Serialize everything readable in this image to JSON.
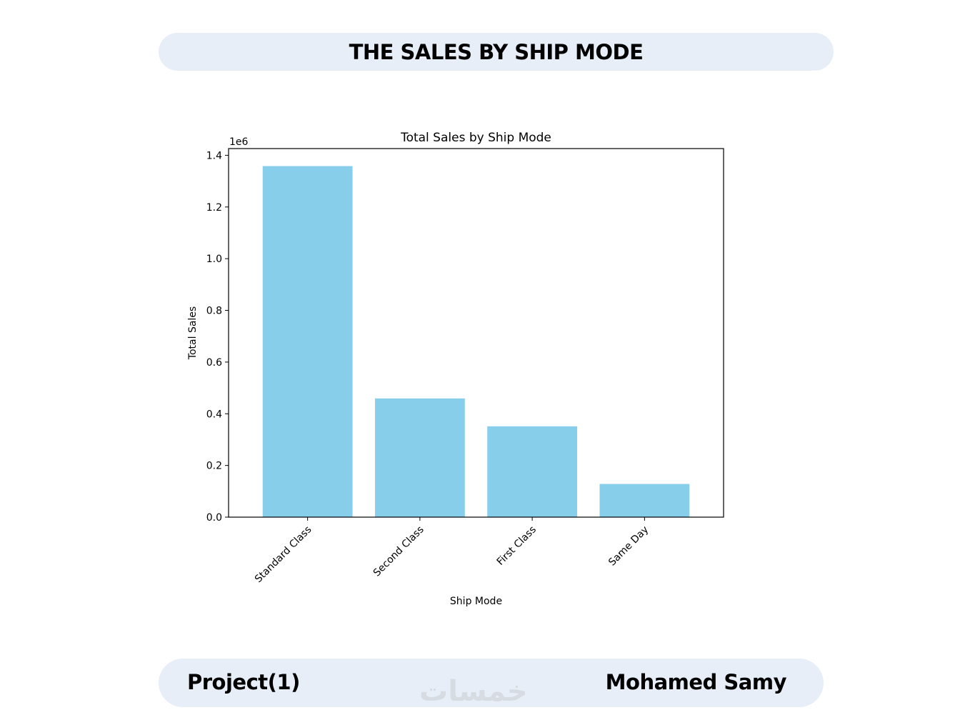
{
  "header": {
    "title": "THE SALES BY SHIP MODE"
  },
  "footer": {
    "left_label": "Project(1)",
    "right_label": "Mohamed Samy",
    "watermark": "خمسات"
  },
  "colors": {
    "bar": "#87ceeb",
    "pill_background": "#e8eef8"
  },
  "chart_data": {
    "type": "bar",
    "title": "Total Sales by Ship Mode",
    "xlabel": "Ship Mode",
    "ylabel": "Total Sales",
    "y_offset_label": "1e6",
    "categories": [
      "Standard Class",
      "Second Class",
      "First Class",
      "Same Day"
    ],
    "values": [
      1358216,
      459194,
      351428,
      128363
    ],
    "ylim": [
      0,
      1426000
    ],
    "yticks": [
      0,
      200000,
      400000,
      600000,
      800000,
      1000000,
      1200000,
      1400000
    ],
    "ytick_labels": [
      "0.0",
      "0.2",
      "0.4",
      "0.6",
      "0.8",
      "1.0",
      "1.2",
      "1.4"
    ],
    "grid": false,
    "legend": false
  }
}
